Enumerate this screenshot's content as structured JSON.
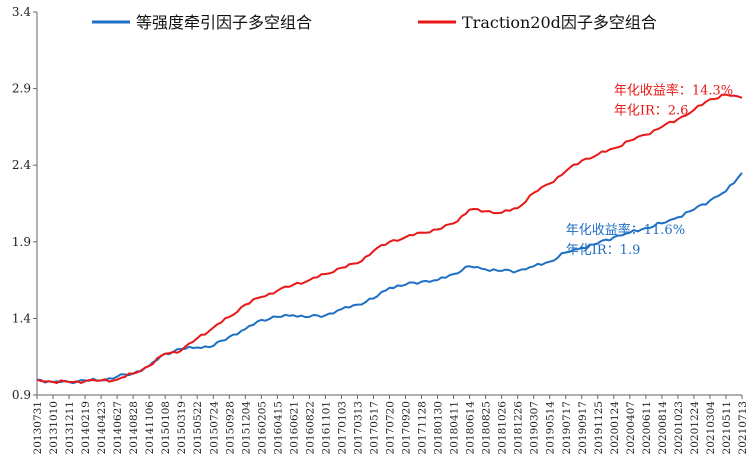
{
  "chart_data": {
    "type": "line",
    "title": "",
    "xlabel": "",
    "ylabel": "",
    "ylim": [
      0.9,
      3.4
    ],
    "yticks": [
      "0.9",
      "1.4",
      "1.9",
      "2.4",
      "2.9",
      "3.4"
    ],
    "grid": false,
    "legend_position": "top",
    "x_ticks": [
      "20130731",
      "20131010",
      "20131211",
      "20140219",
      "20140423",
      "20140627",
      "20140828",
      "20141106",
      "20150108",
      "20150319",
      "20150522",
      "20150724",
      "20150928",
      "20151204",
      "20160205",
      "20160415",
      "20160621",
      "20160822",
      "20161101",
      "20170103",
      "20170313",
      "20170517",
      "20170720",
      "20170920",
      "20171128",
      "20180130",
      "20180411",
      "20180614",
      "20180825",
      "20181026",
      "20181226",
      "20190307",
      "20190514",
      "20190717",
      "20190917",
      "20191125",
      "20200124",
      "20200407",
      "20200611",
      "20200814",
      "20201023",
      "20201224",
      "20210304",
      "20210511",
      "20210713"
    ],
    "series": [
      {
        "name": "等强度牵引因子多空组合",
        "color": "#1f6fc5",
        "values": [
          1.0,
          0.985,
          0.985,
          0.995,
          0.995,
          1.02,
          1.04,
          1.09,
          1.17,
          1.2,
          1.21,
          1.22,
          1.28,
          1.33,
          1.39,
          1.41,
          1.42,
          1.41,
          1.42,
          1.46,
          1.49,
          1.53,
          1.6,
          1.62,
          1.64,
          1.65,
          1.69,
          1.74,
          1.72,
          1.71,
          1.71,
          1.74,
          1.77,
          1.83,
          1.86,
          1.89,
          1.93,
          1.96,
          1.99,
          2.02,
          2.06,
          2.11,
          2.17,
          2.23,
          2.35
        ]
      },
      {
        "name": "Traction20d因子多空组合",
        "color": "#e81818",
        "values": [
          1.0,
          0.985,
          0.985,
          0.99,
          0.995,
          1.0,
          1.04,
          1.09,
          1.17,
          1.19,
          1.27,
          1.34,
          1.41,
          1.49,
          1.54,
          1.58,
          1.62,
          1.65,
          1.69,
          1.73,
          1.76,
          1.84,
          1.9,
          1.93,
          1.96,
          1.98,
          2.02,
          2.11,
          2.1,
          2.09,
          2.12,
          2.22,
          2.28,
          2.36,
          2.43,
          2.47,
          2.51,
          2.56,
          2.6,
          2.65,
          2.7,
          2.76,
          2.83,
          2.86,
          2.84
        ]
      }
    ],
    "annotations": [
      {
        "series": 1,
        "text": "年化收益率：14.3%",
        "at_x": "20200124",
        "at_y": 2.86
      },
      {
        "series": 1,
        "text": "年化IR：2.6",
        "at_x": "20200124",
        "at_y": 2.73
      },
      {
        "series": 0,
        "text": "年化收益率：11.6%",
        "at_x": "20190717",
        "at_y": 1.95
      },
      {
        "series": 0,
        "text": "年化IR：1.9",
        "at_x": "20190717",
        "at_y": 1.82
      }
    ]
  }
}
